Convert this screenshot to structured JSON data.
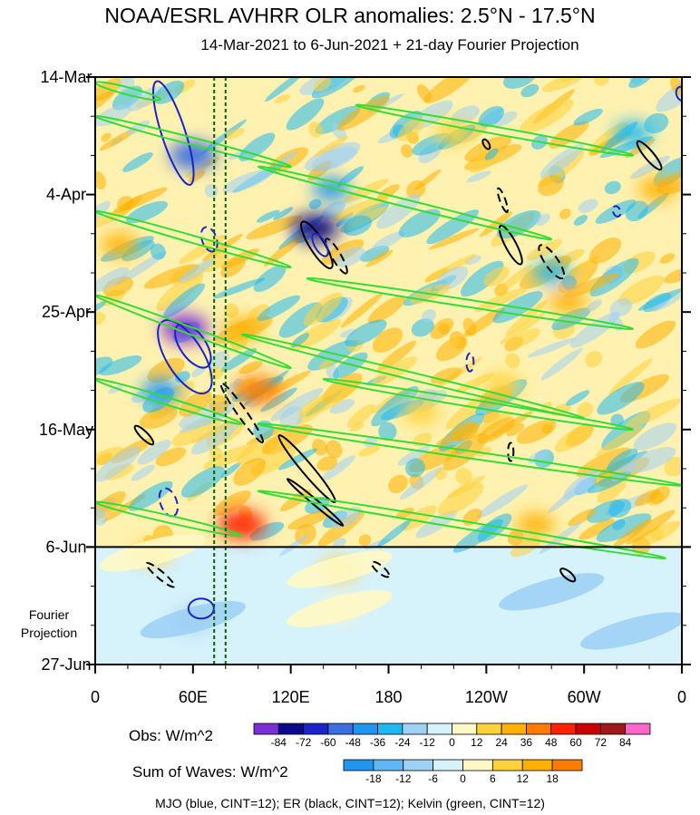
{
  "chart_data": {
    "type": "heatmap",
    "title": "NOAA/ESRL AVHRR OLR anomalies: 2.5°N - 17.5°N",
    "subtitle": "14-Mar-2021 to 6-Jun-2021 + 21-day Fourier Projection",
    "x_ticks": [
      "0",
      "60E",
      "120E",
      "180",
      "120W",
      "60W",
      "0"
    ],
    "x_tick_values": [
      0,
      60,
      120,
      180,
      240,
      300,
      360
    ],
    "xlim": [
      0,
      360
    ],
    "y_ticks": [
      "14-Mar",
      "4-Apr",
      "25-Apr",
      "16-May",
      "6-Jun",
      "27-Jun"
    ],
    "y_tick_values": [
      0,
      21,
      42,
      63,
      84,
      105
    ],
    "ylim": [
      0,
      105
    ],
    "observed_end_day": 84,
    "projection_label": [
      "Fourier",
      "Projection"
    ],
    "vertical_reference_lines_lon": [
      73,
      80
    ],
    "obs_colorbar": {
      "label": "Obs: W/m^2",
      "levels": [
        "-84",
        "-72",
        "-60",
        "-48",
        "-36",
        "-24",
        "-12",
        "0",
        "12",
        "24",
        "36",
        "48",
        "60",
        "72",
        "84"
      ],
      "colors": [
        "#7b2fd6",
        "#0b0b8a",
        "#1a24c8",
        "#3b6ee0",
        "#2196ef",
        "#20b8f0",
        "#9fd0f5",
        "#d6f2fb",
        "#fff8c4",
        "#ffd23a",
        "#ffb000",
        "#ff7c00",
        "#ff2200",
        "#cc0000",
        "#a01818",
        "#ff66cc"
      ]
    },
    "waves_colorbar": {
      "label": "Sum of Waves: W/m^2",
      "levels": [
        "-18",
        "-12",
        "-6",
        "0",
        "6",
        "12",
        "18"
      ],
      "colors": [
        "#2196ef",
        "#5fb8f5",
        "#9fd0f5",
        "#d6f2fb",
        "#fff8c4",
        "#ffd23a",
        "#ffb000",
        "#ff7c00"
      ]
    },
    "legend_text": "MJO (blue, CINT=12); ER (black, CINT=12); Kelvin (green, CINT=12)",
    "series": [
      {
        "name": "MJO (blue, CINT=12)",
        "color": "#1a24c8"
      },
      {
        "name": "ER (black, CINT=12)",
        "color": "#000000"
      },
      {
        "name": "Kelvin (green, CINT=12)",
        "color": "#33dd33"
      }
    ],
    "anomaly_blobs": [
      {
        "lon": 55,
        "day": 45,
        "value": -84
      },
      {
        "lon": 135,
        "day": 27,
        "value": -72
      },
      {
        "lon": 40,
        "day": 56,
        "value": -36
      },
      {
        "lon": 60,
        "day": 14,
        "value": -48
      },
      {
        "lon": 145,
        "day": 20,
        "value": -36
      },
      {
        "lon": 280,
        "day": 35,
        "value": -24
      },
      {
        "lon": 330,
        "day": 10,
        "value": -24
      },
      {
        "lon": 90,
        "day": 80,
        "value": 60
      },
      {
        "lon": 100,
        "day": 56,
        "value": 48
      },
      {
        "lon": 15,
        "day": 30,
        "value": 36
      },
      {
        "lon": 90,
        "day": 45,
        "value": 36
      },
      {
        "lon": 290,
        "day": 40,
        "value": 36
      },
      {
        "lon": 345,
        "day": 20,
        "value": 36
      },
      {
        "lon": 200,
        "day": 60,
        "value": 24
      },
      {
        "lon": 270,
        "day": 80,
        "value": 36
      },
      {
        "lon": 220,
        "day": 10,
        "value": 24
      },
      {
        "lon": 250,
        "day": 55,
        "value": 24
      },
      {
        "lon": 35,
        "day": 85,
        "value": 24
      },
      {
        "lon": 150,
        "day": 88,
        "value": 24
      },
      {
        "lon": 60,
        "day": 97,
        "value": -12
      },
      {
        "lon": 150,
        "day": 95,
        "value": 6
      },
      {
        "lon": 280,
        "day": 92,
        "value": -6
      },
      {
        "lon": 330,
        "day": 99,
        "value": -6
      }
    ],
    "mjo_contours": [
      {
        "lon": 60,
        "day": 48,
        "rx": 28,
        "ry": 14,
        "angle": 55,
        "dashed": false
      },
      {
        "lon": 55,
        "day": 50,
        "rx": 46,
        "ry": 20,
        "angle": 58,
        "dashed": false
      },
      {
        "lon": 48,
        "day": 10,
        "rx": 60,
        "ry": 13,
        "angle": 72,
        "dashed": false
      },
      {
        "lon": 138,
        "day": 30,
        "rx": 14,
        "ry": 6,
        "angle": 60,
        "dashed": false
      },
      {
        "lon": 65,
        "day": 95,
        "rx": 14,
        "ry": 11,
        "angle": 0,
        "dashed": false
      },
      {
        "lon": 70,
        "day": 29,
        "rx": 14,
        "ry": 8,
        "angle": 70,
        "dashed": true
      },
      {
        "lon": 45,
        "day": 76,
        "rx": 16,
        "ry": 9,
        "angle": 70,
        "dashed": true
      },
      {
        "lon": 230,
        "day": 51,
        "rx": 10,
        "ry": 4,
        "angle": 90,
        "dashed": true
      },
      {
        "lon": 360,
        "day": 3,
        "rx": 8,
        "ry": 6,
        "angle": 70,
        "dashed": false
      },
      {
        "lon": 320,
        "day": 24,
        "rx": 6,
        "ry": 4,
        "angle": 70,
        "dashed": true
      }
    ],
    "er_contours": [
      {
        "lon": 136,
        "day": 30,
        "rx": 30,
        "ry": 8,
        "angle": 58,
        "dashed": false
      },
      {
        "lon": 148,
        "day": 32,
        "rx": 22,
        "ry": 5,
        "angle": 60,
        "dashed": true
      },
      {
        "lon": 90,
        "day": 60,
        "rx": 40,
        "ry": 5,
        "angle": 55,
        "dashed": true
      },
      {
        "lon": 130,
        "day": 70,
        "rx": 48,
        "ry": 6,
        "angle": 50,
        "dashed": false
      },
      {
        "lon": 280,
        "day": 33,
        "rx": 22,
        "ry": 7,
        "angle": 55,
        "dashed": true
      },
      {
        "lon": 255,
        "day": 30,
        "rx": 24,
        "ry": 6,
        "angle": 62,
        "dashed": false
      },
      {
        "lon": 250,
        "day": 22,
        "rx": 14,
        "ry": 3,
        "angle": 70,
        "dashed": true
      },
      {
        "lon": 340,
        "day": 14,
        "rx": 20,
        "ry": 5,
        "angle": 50,
        "dashed": false
      },
      {
        "lon": 30,
        "day": 64,
        "rx": 14,
        "ry": 4,
        "angle": 45,
        "dashed": false
      },
      {
        "lon": 40,
        "day": 89,
        "rx": 20,
        "ry": 4,
        "angle": 40,
        "dashed": true
      },
      {
        "lon": 135,
        "day": 76,
        "rx": 40,
        "ry": 3,
        "angle": 40,
        "dashed": false
      },
      {
        "lon": 175,
        "day": 88,
        "rx": 12,
        "ry": 4,
        "angle": 40,
        "dashed": true
      },
      {
        "lon": 290,
        "day": 89,
        "rx": 10,
        "ry": 4,
        "angle": 40,
        "dashed": false
      },
      {
        "lon": 255,
        "day": 67,
        "rx": 10,
        "ry": 3,
        "angle": 90,
        "dashed": true
      },
      {
        "lon": 240,
        "day": 12,
        "rx": 6,
        "ry": 3,
        "angle": 60,
        "dashed": false
      }
    ],
    "kelvin_bands": [
      {
        "lon1": 0,
        "day1": 1,
        "lon2": 40,
        "day2": 4
      },
      {
        "lon1": 0,
        "day1": 7,
        "lon2": 120,
        "day2": 16
      },
      {
        "lon1": 100,
        "day1": 16,
        "lon2": 280,
        "day2": 29
      },
      {
        "lon1": 0,
        "day1": 24,
        "lon2": 120,
        "day2": 34
      },
      {
        "lon1": 130,
        "day1": 36,
        "lon2": 330,
        "day2": 45
      },
      {
        "lon1": 0,
        "day1": 39,
        "lon2": 120,
        "day2": 52
      },
      {
        "lon1": 90,
        "day1": 46,
        "lon2": 300,
        "day2": 61
      },
      {
        "lon1": 0,
        "day1": 54,
        "lon2": 90,
        "day2": 62
      },
      {
        "lon1": 100,
        "day1": 62,
        "lon2": 360,
        "day2": 73
      },
      {
        "lon1": 0,
        "day1": 76,
        "lon2": 90,
        "day2": 82
      },
      {
        "lon1": 100,
        "day1": 74,
        "lon2": 350,
        "day2": 86
      },
      {
        "lon1": 140,
        "day1": 54,
        "lon2": 330,
        "day2": 63
      },
      {
        "lon1": 160,
        "day1": 5,
        "lon2": 330,
        "day2": 14
      }
    ]
  }
}
